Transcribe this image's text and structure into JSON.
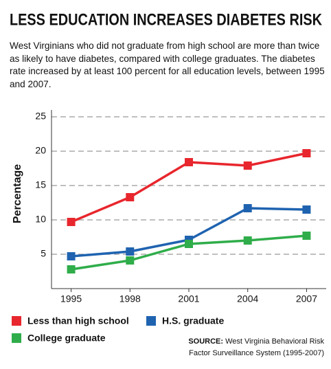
{
  "chart_data": {
    "type": "line",
    "title": "LESS EDUCATION INCREASES DIABETES RISK",
    "subtitle": "West Virginians who did not graduate from high school are more than twice as likely to have diabetes, compared with college graduates. The diabetes rate increased by at least 100 percent for all education levels, between 1995 and 2007.",
    "y_label": "Percentage",
    "x": [
      1995,
      1998,
      2001,
      2004,
      2007
    ],
    "xlim": [
      1994,
      2008
    ],
    "xticks": [
      1995,
      1998,
      2001,
      2004,
      2007
    ],
    "ylim": [
      0,
      25
    ],
    "yticks": [
      5,
      10,
      15,
      20,
      25
    ],
    "grid": true,
    "legend": "bottom",
    "series": [
      {
        "name": "Less than high school",
        "color": "#e8262d",
        "values": [
          9.7,
          13.3,
          18.4,
          17.9,
          19.7
        ]
      },
      {
        "name": "H.S. graduate",
        "color": "#1f63b0",
        "values": [
          4.7,
          5.4,
          7.1,
          11.7,
          11.5
        ]
      },
      {
        "name": "College graduate",
        "color": "#2fad4a",
        "values": [
          2.8,
          4.1,
          6.5,
          7.0,
          7.7
        ]
      }
    ],
    "source_label": "SOURCE:",
    "source": "West Virginia Behavioral Risk Factor Surveillance System (1995-2007)"
  }
}
